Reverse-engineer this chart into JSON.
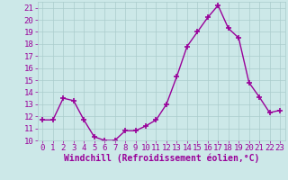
{
  "x": [
    0,
    1,
    2,
    3,
    4,
    5,
    6,
    7,
    8,
    9,
    10,
    11,
    12,
    13,
    14,
    15,
    16,
    17,
    18,
    19,
    20,
    21,
    22,
    23
  ],
  "y": [
    11.7,
    11.7,
    13.5,
    13.3,
    11.7,
    10.3,
    10.0,
    10.0,
    10.8,
    10.8,
    11.2,
    11.7,
    13.0,
    15.3,
    17.8,
    19.0,
    20.2,
    21.2,
    19.3,
    18.5,
    14.8,
    13.6,
    12.3,
    12.5
  ],
  "line_color": "#990099",
  "marker": "+",
  "marker_size": 4,
  "marker_linewidth": 1.2,
  "line_width": 1.0,
  "xlabel": "Windchill (Refroidissement éolien,°C)",
  "ylabel": "",
  "title": "",
  "xlim": [
    -0.5,
    23.5
  ],
  "ylim": [
    10,
    21.5
  ],
  "yticks": [
    10,
    11,
    12,
    13,
    14,
    15,
    16,
    17,
    18,
    19,
    20,
    21
  ],
  "xticks": [
    0,
    1,
    2,
    3,
    4,
    5,
    6,
    7,
    8,
    9,
    10,
    11,
    12,
    13,
    14,
    15,
    16,
    17,
    18,
    19,
    20,
    21,
    22,
    23
  ],
  "bg_color": "#cce8e8",
  "grid_color": "#aacccc",
  "label_color": "#990099",
  "font_size": 6.5,
  "xlabel_fontsize": 7
}
